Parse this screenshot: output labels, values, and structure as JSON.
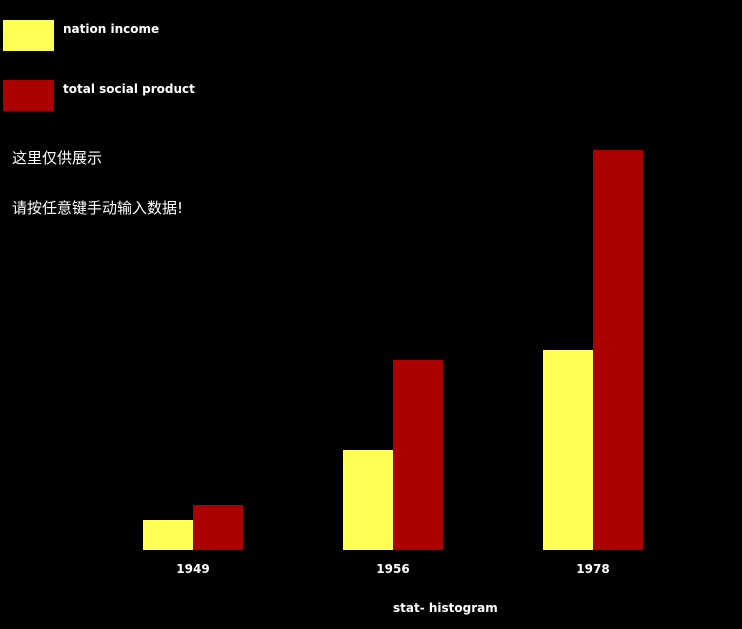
{
  "colors": {
    "background": "#000000",
    "series_1": "#ffff55",
    "series_2": "#aa0000",
    "text": "#ffffff"
  },
  "notes": {
    "line_1": "这里仅供展示",
    "line_2": "请按任意键手动输入数据!"
  },
  "chart_data": {
    "type": "bar",
    "title": "stat- histogram",
    "categories": [
      "1949",
      "1956",
      "1978"
    ],
    "series": [
      {
        "name": "nation income",
        "values": [
          30,
          100,
          200
        ]
      },
      {
        "name": "total social product",
        "values": [
          45,
          190,
          400
        ]
      }
    ],
    "ylim": [
      0,
      400
    ],
    "grid": false,
    "legend": "top-left",
    "xlabel": "",
    "ylabel": ""
  }
}
